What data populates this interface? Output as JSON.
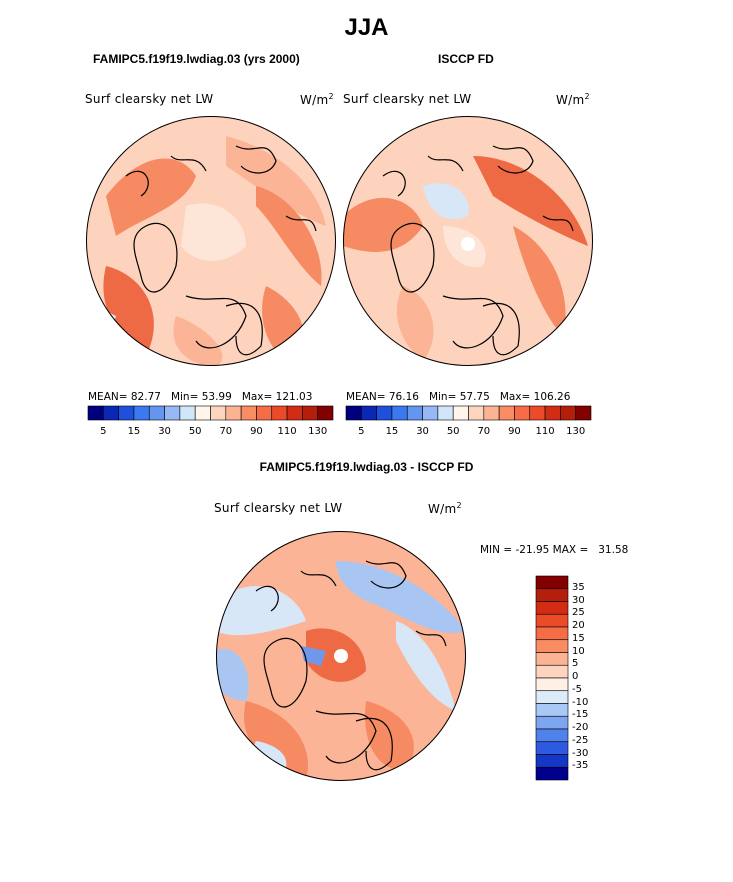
{
  "page": {
    "title": "JJA",
    "panel_left_heading": "FAMIPC5.f19f19.lwdiag.03 (yrs 2000)",
    "panel_right_heading": "ISCCP FD",
    "diff_heading": "FAMIPC5.f19f19.lwdiag.03 - ISCCP FD"
  },
  "panels": [
    {
      "id": "model",
      "variable": "Surf clearsky net LW",
      "units": "W/m",
      "units_sup": "2",
      "mean_label": "MEAN=",
      "mean": "82.77",
      "min_label": "Min=",
      "min": "53.99",
      "max_label": "Max=",
      "max": "121.03"
    },
    {
      "id": "obs",
      "variable": "Surf clearsky net LW",
      "units": "W/m",
      "units_sup": "2",
      "mean_label": "MEAN=",
      "mean": "76.16",
      "min_label": "Min=",
      "min": "57.75",
      "max_label": "Max=",
      "max": "106.26"
    }
  ],
  "colorbar_top": {
    "colors": [
      "#00007f",
      "#0a28b4",
      "#1e50dc",
      "#3c78f0",
      "#6496f0",
      "#96b9f5",
      "#d2e6fa",
      "#fff5ea",
      "#fdd5be",
      "#fcb394",
      "#fa8c64",
      "#f56c46",
      "#eb4b28",
      "#d22d14",
      "#b41e0a",
      "#820000"
    ],
    "ticks": [
      "5",
      "15",
      "30",
      "50",
      "70",
      "90",
      "110",
      "130"
    ]
  },
  "diff": {
    "variable": "Surf clearsky net LW",
    "units": "W/m",
    "units_sup": "2",
    "minmax_text": "MIN = -21.95 MAX =   31.58"
  },
  "colorbar_diff": {
    "colors": [
      "#820000",
      "#b41e0a",
      "#d22d14",
      "#eb4b28",
      "#f56c46",
      "#fa8c64",
      "#fcb394",
      "#fdd5be",
      "#fff0e6",
      "#dcebfa",
      "#aac8f5",
      "#7da5f0",
      "#5082eb",
      "#2d5ae1",
      "#1437c8",
      "#00008c"
    ],
    "ticks": [
      "35",
      "30",
      "25",
      "20",
      "15",
      "10",
      "5",
      "0",
      "-5",
      "-10",
      "-15",
      "-20",
      "-25",
      "-30",
      "-35"
    ]
  },
  "map_colors": {
    "base": "#fdd3bd",
    "light": "#fde5d8",
    "mid": "#fbb596",
    "strong": "#f58a63",
    "deep": "#ee6a45",
    "paleblue": "#d8e7f8",
    "blue": "#a9c6f2",
    "bluedeep": "#6f98ea"
  }
}
